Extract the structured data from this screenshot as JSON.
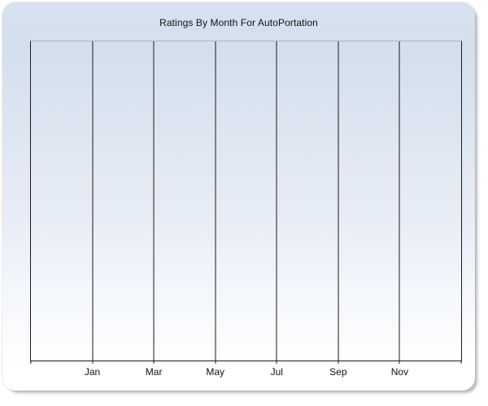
{
  "chart": {
    "title": "Ratings By Month For AutoPortation",
    "x_tick_labels": [
      "Jan",
      "Mar",
      "May",
      "Jul",
      "Sep",
      "Nov"
    ]
  },
  "chart_data": {
    "type": "line",
    "title": "Ratings By Month For AutoPortation",
    "categories": [
      "Jan",
      "Mar",
      "May",
      "Jul",
      "Sep",
      "Nov"
    ],
    "series": [],
    "xlabel": "",
    "ylabel": "",
    "x_axis": {
      "tick_labels": [
        "Jan",
        "Mar",
        "May",
        "Jul",
        "Sep",
        "Nov"
      ]
    },
    "y_axis": {
      "tick_labels": []
    },
    "grid": {
      "vertical": true,
      "horizontal": false
    },
    "legend": "none"
  },
  "colors": {
    "page_background": "#ffffff",
    "panel_gradient_top": "#d7e1f0",
    "panel_gradient_bottom": "#ffffff",
    "gridline": "#1a1a1a",
    "axis_line": "#1a1a1a",
    "plot_top_border": "#a9b4c3",
    "title_text": "#111111",
    "tick_label_text": "#111111",
    "shadow": "#969696"
  }
}
